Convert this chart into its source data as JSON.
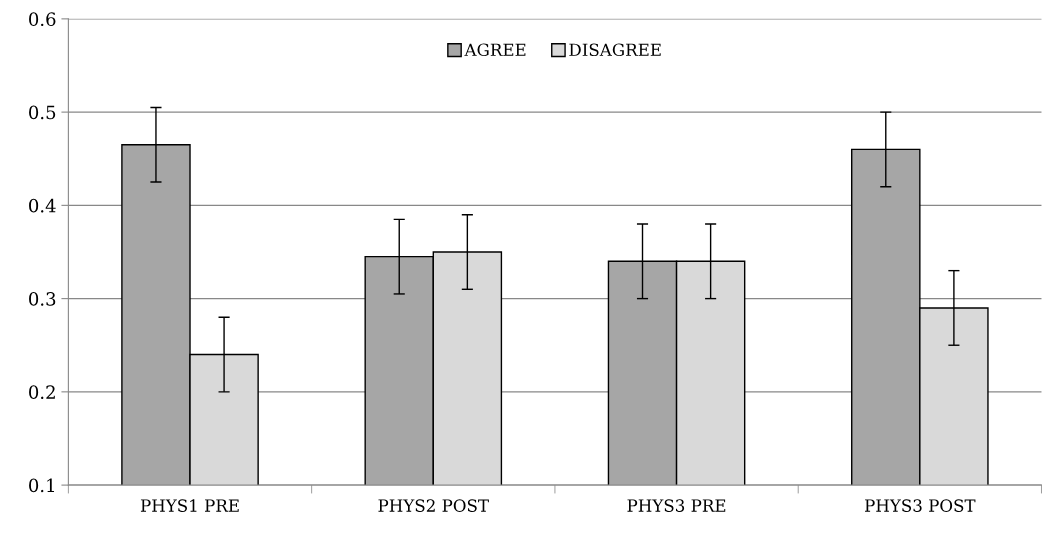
{
  "chart_data": {
    "type": "bar",
    "categories": [
      "PHYS1 PRE",
      "PHYS2 POST",
      "PHYS3 PRE",
      "PHYS3 POST"
    ],
    "series": [
      {
        "name": "AGREE",
        "color": "#a6a6a6",
        "values": [
          0.465,
          0.345,
          0.34,
          0.46
        ],
        "errors": [
          0.04,
          0.04,
          0.04,
          0.04
        ]
      },
      {
        "name": "DISAGREE",
        "color": "#d9d9d9",
        "values": [
          0.24,
          0.35,
          0.34,
          0.29
        ],
        "errors": [
          0.04,
          0.04,
          0.04,
          0.04
        ]
      }
    ],
    "ylim": [
      0.1,
      0.6
    ],
    "yticks": [
      0.1,
      0.2,
      0.3,
      0.4,
      0.5,
      0.6
    ],
    "grid": "y",
    "legend": "top"
  }
}
